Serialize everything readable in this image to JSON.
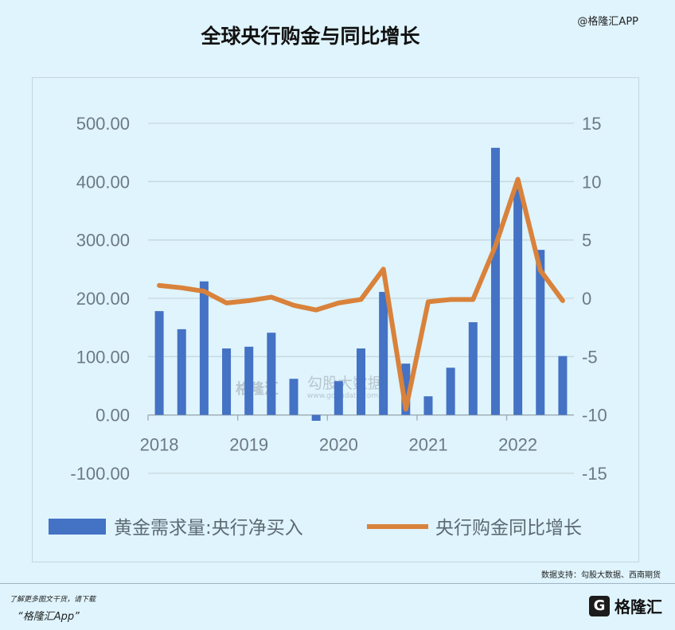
{
  "watermark_top": "@格隆汇APP",
  "source_note": "数据支持：勾股大数据、西南期货",
  "footer": {
    "line1": "了解更多图文干货，请下载",
    "line2": "“格隆汇App”",
    "logo_text": "格隆汇"
  },
  "center_watermark": {
    "brand": "格隆汇",
    "partner": "勾股大数据",
    "partner_url": "www.gogudata.com"
  },
  "chart_data": {
    "type": "bar",
    "title": "全球央行购金与同比增长",
    "x_tick_labels": [
      "2018",
      "2019",
      "2020",
      "2021",
      "2022"
    ],
    "left_axis": {
      "ylim": [
        -100,
        500
      ],
      "ticks": [
        "500.00",
        "400.00",
        "300.00",
        "200.00",
        "100.00",
        "0.00",
        "-100.00"
      ]
    },
    "right_axis": {
      "ylim": [
        -15,
        15
      ],
      "ticks": [
        "15",
        "10",
        "5",
        "0",
        "-5",
        "-10",
        "-15"
      ]
    },
    "grid": true,
    "legend_position": "bottom",
    "series": [
      {
        "name": "黄金需求量:央行净买入",
        "kind": "bar",
        "axis": "left",
        "color": "#4472c4",
        "values": [
          178,
          147,
          229,
          114,
          117,
          141,
          62,
          -10,
          58,
          114,
          211,
          88,
          32,
          81,
          159,
          458,
          388,
          283,
          101
        ]
      },
      {
        "name": "央行购金同比增长",
        "kind": "line",
        "axis": "right",
        "color": "#d9823b",
        "values": [
          1.1,
          0.9,
          0.6,
          -0.4,
          -0.2,
          0.1,
          -0.6,
          -1.0,
          -0.4,
          -0.1,
          2.5,
          -9.5,
          -0.3,
          -0.1,
          -0.1,
          4.5,
          10.2,
          2.4,
          -0.2
        ]
      }
    ]
  }
}
